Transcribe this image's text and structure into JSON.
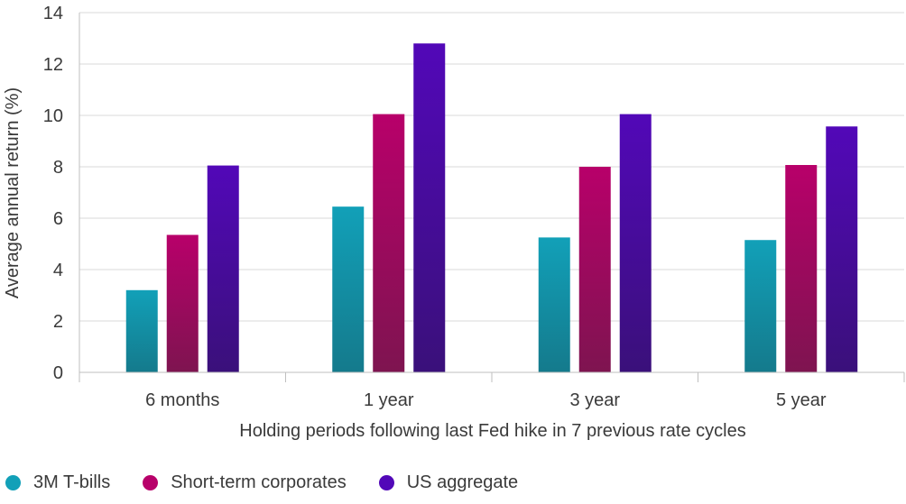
{
  "chart_data": {
    "type": "bar",
    "title": "",
    "categories": [
      "6 months",
      "1 year",
      "3 year",
      "5 year"
    ],
    "series": [
      {
        "name": "3M T-bills",
        "values": [
          3.2,
          6.45,
          5.25,
          5.15
        ],
        "color": "#12a0b8",
        "color_bottom": "#147a8c"
      },
      {
        "name": "Short-term corporates",
        "values": [
          5.35,
          10.05,
          8.0,
          8.07
        ],
        "color": "#b8006a",
        "color_bottom": "#7e1450"
      },
      {
        "name": "US aggregate",
        "values": [
          8.05,
          12.8,
          10.05,
          9.57
        ],
        "color": "#5208b8",
        "color_bottom": "#3a107a"
      }
    ],
    "xlabel": "Holding periods following last Fed hike in 7 previous rate cycles",
    "ylabel": "Average annual return (%)",
    "ylim": [
      0,
      14
    ],
    "yticks": [
      "0",
      "2",
      "4",
      "6",
      "8",
      "10",
      "12",
      "14"
    ],
    "grid": true,
    "legend_position": "bottom-left"
  }
}
